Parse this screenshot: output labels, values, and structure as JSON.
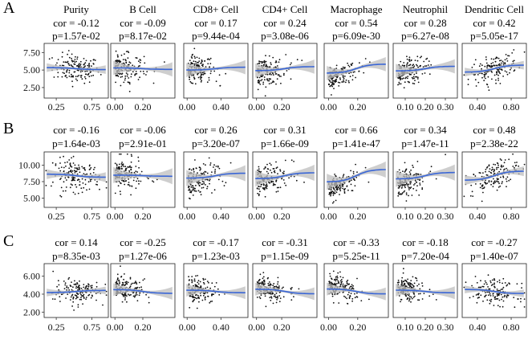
{
  "chart_data": {
    "type": "scatter",
    "description_rows": [
      "A",
      "B",
      "C"
    ],
    "columns": [
      "Purity",
      "B Cell",
      "CD8+ Cell",
      "CD4+ Cell",
      "Macrophage",
      "Neutrophil",
      "Dendritic Cell"
    ],
    "x_ticks": [
      [
        "0.25",
        "0.75"
      ],
      [
        "0.00",
        "0.20"
      ],
      [
        "0.00",
        "0.40"
      ],
      [
        "0.00",
        "0.20"
      ],
      [
        "0.00",
        "0.20"
      ],
      [
        "0.10",
        "0.20",
        "0.30"
      ],
      [
        "0.40",
        "0.80"
      ]
    ],
    "x_tick_values": [
      [
        0.25,
        0.75
      ],
      [
        0.0,
        0.2
      ],
      [
        0.0,
        0.4
      ],
      [
        0.0,
        0.2
      ],
      [
        0.0,
        0.2
      ],
      [
        0.1,
        0.2,
        0.3
      ],
      [
        0.4,
        0.8
      ]
    ],
    "xlim": [
      [
        0.08,
        0.98
      ],
      [
        -0.03,
        0.43
      ],
      [
        -0.04,
        0.72
      ],
      [
        -0.03,
        0.48
      ],
      [
        -0.03,
        0.41
      ],
      [
        0.04,
        0.36
      ],
      [
        0.22,
        0.98
      ]
    ],
    "rows": [
      {
        "label": "A",
        "y_ticks": [
          "7.50",
          "5.00",
          "2.50"
        ],
        "y_tick_values": [
          7.5,
          5.0,
          2.5
        ],
        "ylim": [
          1.0,
          8.8
        ],
        "y_center": 5.2,
        "y_spread": 1.0,
        "panels": [
          {
            "cor": "cor = -0.12",
            "p": "p=1.57e-02",
            "r": -0.12
          },
          {
            "cor": "cor = -0.09",
            "p": "p=8.17e-02",
            "r": -0.09
          },
          {
            "cor": "cor = 0.17",
            "p": "p=9.44e-04",
            "r": 0.17
          },
          {
            "cor": "cor = 0.24",
            "p": "p=3.08e-06",
            "r": 0.24
          },
          {
            "cor": "cor = 0.54",
            "p": "p=6.09e-30",
            "r": 0.54
          },
          {
            "cor": "cor = 0.28",
            "p": "p=6.27e-08",
            "r": 0.28
          },
          {
            "cor": "cor = 0.42",
            "p": "p=5.05e-17",
            "r": 0.42
          }
        ]
      },
      {
        "label": "B",
        "y_ticks": [
          "10.00",
          "7.50",
          "5.00"
        ],
        "y_tick_values": [
          10.0,
          7.5,
          5.0
        ],
        "ylim": [
          3.6,
          12.0
        ],
        "y_center": 8.4,
        "y_spread": 1.2,
        "panels": [
          {
            "cor": "cor = -0.16",
            "p": "p=1.64e-03",
            "r": -0.16
          },
          {
            "cor": "cor = -0.06",
            "p": "p=2.91e-01",
            "r": -0.06
          },
          {
            "cor": "cor = 0.26",
            "p": "p=3.20e-07",
            "r": 0.26
          },
          {
            "cor": "cor = 0.31",
            "p": "p=1.66e-09",
            "r": 0.31
          },
          {
            "cor": "cor = 0.66",
            "p": "p=1.41e-47",
            "r": 0.66
          },
          {
            "cor": "cor = 0.34",
            "p": "p=1.47e-11",
            "r": 0.34
          },
          {
            "cor": "cor = 0.48",
            "p": "p=2.38e-22",
            "r": 0.48
          }
        ]
      },
      {
        "label": "C",
        "y_ticks": [
          "6.00",
          "4.00",
          "2.00"
        ],
        "y_tick_values": [
          6.0,
          4.0,
          2.0
        ],
        "ylim": [
          1.4,
          7.4
        ],
        "y_center": 4.3,
        "y_spread": 0.7,
        "panels": [
          {
            "cor": "cor = 0.14",
            "p": "p=8.35e-03",
            "r": 0.14
          },
          {
            "cor": "cor = -0.25",
            "p": "p=1.27e-06",
            "r": -0.25
          },
          {
            "cor": "cor = -0.17",
            "p": "p=1.23e-03",
            "r": -0.17
          },
          {
            "cor": "cor = -0.31",
            "p": "p=1.15e-09",
            "r": -0.31
          },
          {
            "cor": "cor = -0.33",
            "p": "p=5.25e-11",
            "r": -0.33
          },
          {
            "cor": "cor = -0.18",
            "p": "p=7.20e-04",
            "r": -0.18
          },
          {
            "cor": "cor = -0.27",
            "p": "p=1.40e-07",
            "r": -0.27
          }
        ]
      }
    ],
    "colors": {
      "points": "#111111",
      "trend": "#3a66d6",
      "confidence_band": "#bdbdbd"
    }
  }
}
